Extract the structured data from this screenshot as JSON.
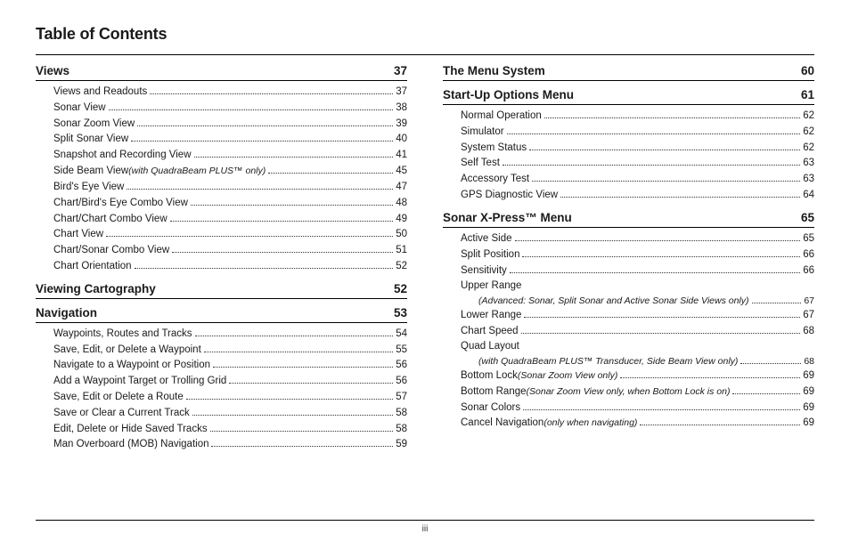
{
  "page_title": "Table of Contents",
  "footer_page": "iii",
  "columns": [
    {
      "sections": [
        {
          "title": "Views",
          "page": "37",
          "entries": [
            {
              "label": "Views and Readouts",
              "page": "37"
            },
            {
              "label": "Sonar View ",
              "page": "38"
            },
            {
              "label": "Sonar Zoom View ",
              "page": "39"
            },
            {
              "label": "Split Sonar View ",
              "page": "40"
            },
            {
              "label": "Snapshot and Recording View",
              "page": "41"
            },
            {
              "label": "Side Beam View ",
              "note": "(with QuadraBeam PLUS™ only) ",
              "page": "45"
            },
            {
              "label": "Bird's Eye View ",
              "page": "47"
            },
            {
              "label": "Chart/Bird's Eye Combo View ",
              "page": "48"
            },
            {
              "label": "Chart/Chart Combo View ",
              "page": "49"
            },
            {
              "label": "Chart View",
              "page": "50"
            },
            {
              "label": "Chart/Sonar Combo View",
              "page": "51"
            },
            {
              "label": "Chart Orientation ",
              "page": "52"
            }
          ]
        },
        {
          "title": "Viewing Cartography",
          "page": "52",
          "entries": []
        },
        {
          "title": "Navigation",
          "page": "53",
          "entries": [
            {
              "label": "Waypoints, Routes and Tracks",
              "page": "54"
            },
            {
              "label": "Save, Edit, or Delete a Waypoint ",
              "page": "55"
            },
            {
              "label": "Navigate to a Waypoint or Position",
              "page": "56"
            },
            {
              "label": "Add a Waypoint Target or Trolling Grid",
              "page": "56"
            },
            {
              "label": "Save, Edit or Delete a Route ",
              "page": "57"
            },
            {
              "label": "Save or Clear a Current Track ",
              "page": "58"
            },
            {
              "label": "Edit, Delete or Hide Saved Tracks ",
              "page": "58"
            },
            {
              "label": "Man Overboard (MOB) Navigation ",
              "page": "59"
            }
          ]
        }
      ]
    },
    {
      "sections": [
        {
          "title": "The Menu System",
          "page": "60",
          "entries": []
        },
        {
          "title": "Start-Up Options Menu",
          "page": "61",
          "entries": [
            {
              "label": "Normal Operation ",
              "page": "62"
            },
            {
              "label": "Simulator ",
              "page": "62"
            },
            {
              "label": "System Status ",
              "page": "62"
            },
            {
              "label": "Self Test ",
              "page": "63"
            },
            {
              "label": "Accessory Test",
              "page": "63"
            },
            {
              "label": "GPS Diagnostic View ",
              "page": "64"
            }
          ]
        },
        {
          "title": "Sonar X-Press™ Menu",
          "page": "65",
          "entries": [
            {
              "label": "Active Side",
              "page": "65"
            },
            {
              "label": "Split Position ",
              "page": "66"
            },
            {
              "label": "Sensitivity ",
              "page": "66"
            },
            {
              "label": "Upper Range",
              "no_page": true
            },
            {
              "sub": true,
              "label": "(Advanced: Sonar, Split Sonar and Active Sonar Side Views only)",
              "page": "67"
            },
            {
              "label": "Lower Range ",
              "page": "67"
            },
            {
              "label": "Chart Speed ",
              "page": "68"
            },
            {
              "label": "Quad Layout",
              "no_page": true
            },
            {
              "sub": true,
              "label": "(with QuadraBeam PLUS™ Transducer, Side Beam View only) ",
              "page": "68"
            },
            {
              "label": "Bottom Lock ",
              "note": "(Sonar Zoom View only) ",
              "page": "69"
            },
            {
              "label": "Bottom Range ",
              "note": "(Sonar Zoom View only, when Bottom Lock is on)",
              "page": "69"
            },
            {
              "label": "Sonar Colors ",
              "page": "69"
            },
            {
              "label": "Cancel Navigation ",
              "note": "(only when navigating)",
              "page": "69"
            }
          ]
        }
      ]
    }
  ]
}
